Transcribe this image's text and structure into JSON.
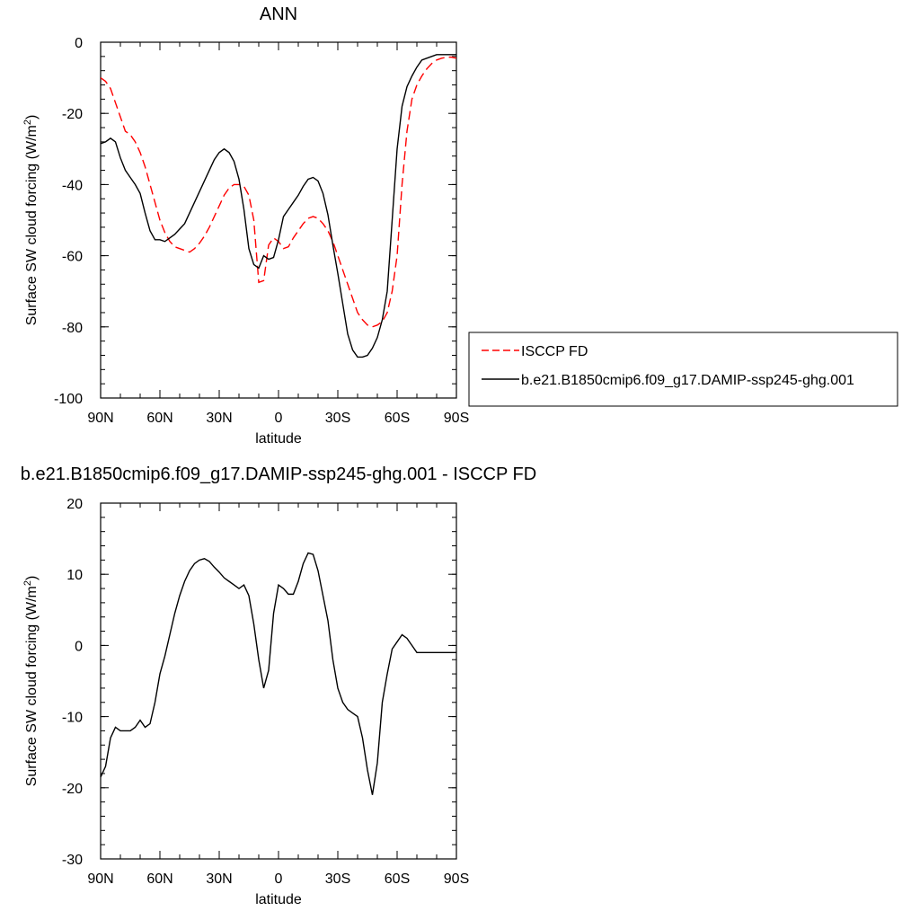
{
  "chart_data": [
    {
      "type": "line",
      "title": "ANN",
      "xlabel": "latitude",
      "ylabel": "Surface SW cloud forcing (W/m",
      "ylabel_sup": "2",
      "ylabel_close": ")",
      "xlim": [
        90,
        -90
      ],
      "ylim": [
        -100,
        0
      ],
      "x_ticks": [
        90,
        60,
        30,
        0,
        -30,
        -60,
        -90
      ],
      "x_tick_labels": [
        "90N",
        "60N",
        "30N",
        "0",
        "30S",
        "60S",
        "90S"
      ],
      "y_ticks": [
        0,
        -20,
        -40,
        -60,
        -80,
        -100
      ],
      "y_tick_labels": [
        "0",
        "-20",
        "-40",
        "-60",
        "-80",
        "-100"
      ],
      "legend_position": "right",
      "series": [
        {
          "name": "ISCCP FD",
          "color": "#ff0000",
          "dash": "dashed",
          "x": [
            90,
            87.5,
            85,
            82.5,
            80,
            77.5,
            75,
            72.5,
            70,
            67.5,
            65,
            62.5,
            60,
            57.5,
            55,
            52.5,
            50,
            47.5,
            45,
            42.5,
            40,
            37.5,
            35,
            32.5,
            30,
            27.5,
            25,
            22.5,
            20,
            17.5,
            15,
            12.5,
            10,
            7.5,
            5,
            2.5,
            0,
            -2.5,
            -5,
            -7.5,
            -10,
            -12.5,
            -15,
            -17.5,
            -20,
            -22.5,
            -25,
            -27.5,
            -30,
            -32.5,
            -35,
            -37.5,
            -40,
            -42.5,
            -45,
            -47.5,
            -50,
            -52.5,
            -55,
            -57.5,
            -60,
            -62.5,
            -65,
            -67.5,
            -70,
            -72.5,
            -75,
            -77.5,
            -80,
            -82.5,
            -85,
            -87.5,
            -90
          ],
          "values": [
            -10,
            -11,
            -13,
            -17,
            -21,
            -25,
            -26,
            -28,
            -31,
            -35,
            -40,
            -45,
            -50,
            -53.5,
            -56,
            -57.5,
            -58,
            -58.5,
            -59,
            -58,
            -56.5,
            -54.5,
            -52,
            -49,
            -46,
            -43,
            -41,
            -40,
            -40,
            -40.5,
            -43,
            -50,
            -67.5,
            -67,
            -57,
            -55,
            -56,
            -58,
            -57.5,
            -55,
            -53,
            -51,
            -49.5,
            -49,
            -49.5,
            -51,
            -53,
            -56,
            -60,
            -64,
            -68,
            -72,
            -76,
            -78,
            -79.5,
            -80,
            -79.5,
            -78.5,
            -76,
            -70,
            -60,
            -40,
            -25,
            -16,
            -12,
            -9.5,
            -7.5,
            -6,
            -5,
            -4.5,
            -4.2,
            -4.2,
            -4.5
          ]
        },
        {
          "name": "b.e21.B1850cmip6.f09_g17.DAMIP-ssp245-ghg.001",
          "color": "#000000",
          "dash": "solid",
          "x": [
            90,
            87.5,
            85,
            82.5,
            80,
            77.5,
            75,
            72.5,
            70,
            67.5,
            65,
            62.5,
            60,
            57.5,
            55,
            52.5,
            50,
            47.5,
            45,
            42.5,
            40,
            37.5,
            35,
            32.5,
            30,
            27.5,
            25,
            22.5,
            20,
            17.5,
            15,
            12.5,
            10,
            7.5,
            5,
            2.5,
            0,
            -2.5,
            -5,
            -7.5,
            -10,
            -12.5,
            -15,
            -17.5,
            -20,
            -22.5,
            -25,
            -27.5,
            -30,
            -32.5,
            -35,
            -37.5,
            -40,
            -42.5,
            -45,
            -47.5,
            -50,
            -52.5,
            -55,
            -57.5,
            -60,
            -62.5,
            -65,
            -67.5,
            -70,
            -72.5,
            -75,
            -77.5,
            -80,
            -82.5,
            -85,
            -87.5,
            -90
          ],
          "values": [
            -28.5,
            -28,
            -27,
            -28,
            -32.5,
            -36,
            -38,
            -40,
            -42.5,
            -48,
            -53,
            -55.5,
            -55.5,
            -56,
            -55,
            -54,
            -52.5,
            -51,
            -48,
            -45,
            -42,
            -39,
            -36,
            -33,
            -31,
            -30,
            -31,
            -33.5,
            -38.5,
            -47,
            -58,
            -62.5,
            -63.5,
            -60,
            -61,
            -60.5,
            -55.5,
            -49,
            -47,
            -45,
            -43,
            -40.5,
            -38.5,
            -38,
            -39,
            -42.5,
            -48.5,
            -57,
            -65,
            -73.5,
            -82,
            -86.5,
            -88.5,
            -88.5,
            -88,
            -86,
            -83,
            -78,
            -70,
            -50,
            -30,
            -18,
            -12.5,
            -9.5,
            -7,
            -5,
            -4.5,
            -4,
            -3.5,
            -3.5,
            -3.5,
            -3.5,
            -3.5
          ]
        }
      ]
    },
    {
      "type": "line",
      "title": "b.e21.B1850cmip6.f09_g17.DAMIP-ssp245-ghg.001 - ISCCP FD",
      "xlabel": "latitude",
      "ylabel": "Surface SW cloud forcing (W/m",
      "ylabel_sup": "2",
      "ylabel_close": ")",
      "xlim": [
        90,
        -90
      ],
      "ylim": [
        -30,
        20
      ],
      "x_ticks": [
        90,
        60,
        30,
        0,
        -30,
        -60,
        -90
      ],
      "x_tick_labels": [
        "90N",
        "60N",
        "30N",
        "0",
        "30S",
        "60S",
        "90S"
      ],
      "y_ticks": [
        20,
        10,
        0,
        -10,
        -20,
        -30
      ],
      "y_tick_labels": [
        "20",
        "10",
        "0",
        "-10",
        "-20",
        "-30"
      ],
      "series": [
        {
          "color": "#000000",
          "dash": "solid",
          "x": [
            90,
            87.5,
            85,
            82.5,
            80,
            77.5,
            75,
            72.5,
            70,
            67.5,
            65,
            62.5,
            60,
            57.5,
            55,
            52.5,
            50,
            47.5,
            45,
            42.5,
            40,
            37.5,
            35,
            32.5,
            30,
            27.5,
            25,
            22.5,
            20,
            17.5,
            15,
            12.5,
            10,
            7.5,
            5,
            2.5,
            0,
            -2.5,
            -5,
            -7.5,
            -10,
            -12.5,
            -15,
            -17.5,
            -20,
            -22.5,
            -25,
            -27.5,
            -30,
            -32.5,
            -35,
            -37.5,
            -40,
            -42.5,
            -45,
            -47.5,
            -50,
            -52.5,
            -55,
            -57.5,
            -60,
            -62.5,
            -65,
            -67.5,
            -70,
            -72.5,
            -75,
            -77.5,
            -80,
            -82.5,
            -85,
            -87.5,
            -90
          ],
          "values": [
            -18.5,
            -17,
            -13,
            -11.5,
            -12,
            -12,
            -12,
            -11.5,
            -10.5,
            -11.5,
            -11,
            -8,
            -4,
            -1.5,
            1.5,
            4.5,
            7,
            9,
            10.5,
            11.5,
            12,
            12.2,
            11.8,
            11,
            10.3,
            9.5,
            9,
            8.5,
            8,
            8.5,
            7,
            3,
            -2,
            -6,
            -3.5,
            4.5,
            8.5,
            8,
            7.2,
            7.2,
            9,
            11.5,
            13,
            12.8,
            10.5,
            7,
            3.5,
            -2,
            -6,
            -8,
            -9,
            -9.5,
            -10,
            -13,
            -17.5,
            -21,
            -16.5,
            -8,
            -4,
            -0.5,
            0.5,
            1.5,
            1,
            0,
            -1,
            -1,
            -1,
            -1,
            -1,
            -1,
            -1,
            -1,
            -1
          ]
        }
      ]
    }
  ]
}
